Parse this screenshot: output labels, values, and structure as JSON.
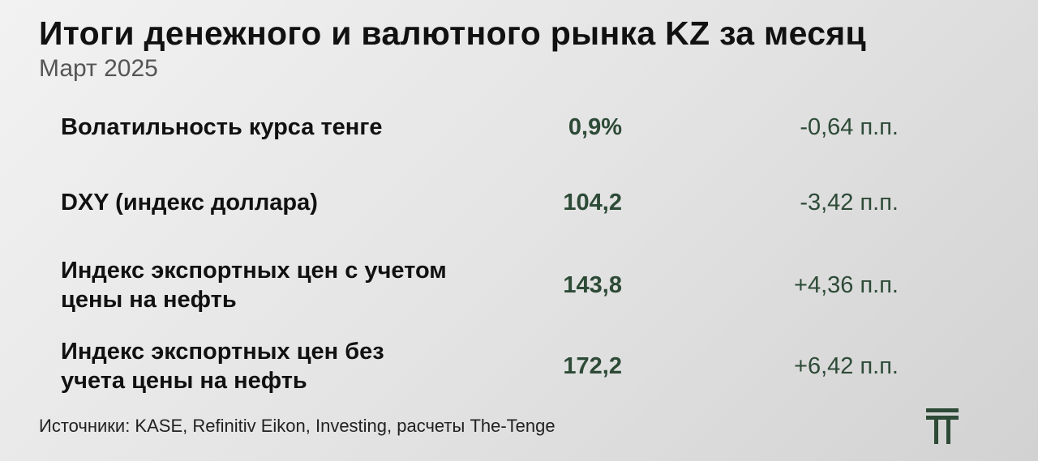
{
  "header": {
    "title": "Итоги денежного и валютного рынка KZ за месяц",
    "subtitle": "Март 2025"
  },
  "table": {
    "rows": [
      {
        "label": "Волатильность курса тенге",
        "value": "0,9%",
        "change": "-0,64 п.п."
      },
      {
        "label": "DXY (индекс доллара)",
        "value": "104,2",
        "change": "-3,42 п.п."
      },
      {
        "label": "Индекс экспортных цен с учетом цены на нефть",
        "value": "143,8",
        "change": "+4,36 п.п."
      },
      {
        "label": "Индекс экспортных цен без учета цены на нефть",
        "value": "172,2",
        "change": "+6,42 п.п."
      }
    ]
  },
  "footer": {
    "source": "Источники: KASE, Refinitiv Eikon, Investing, расчеты The-Tenge"
  }
}
